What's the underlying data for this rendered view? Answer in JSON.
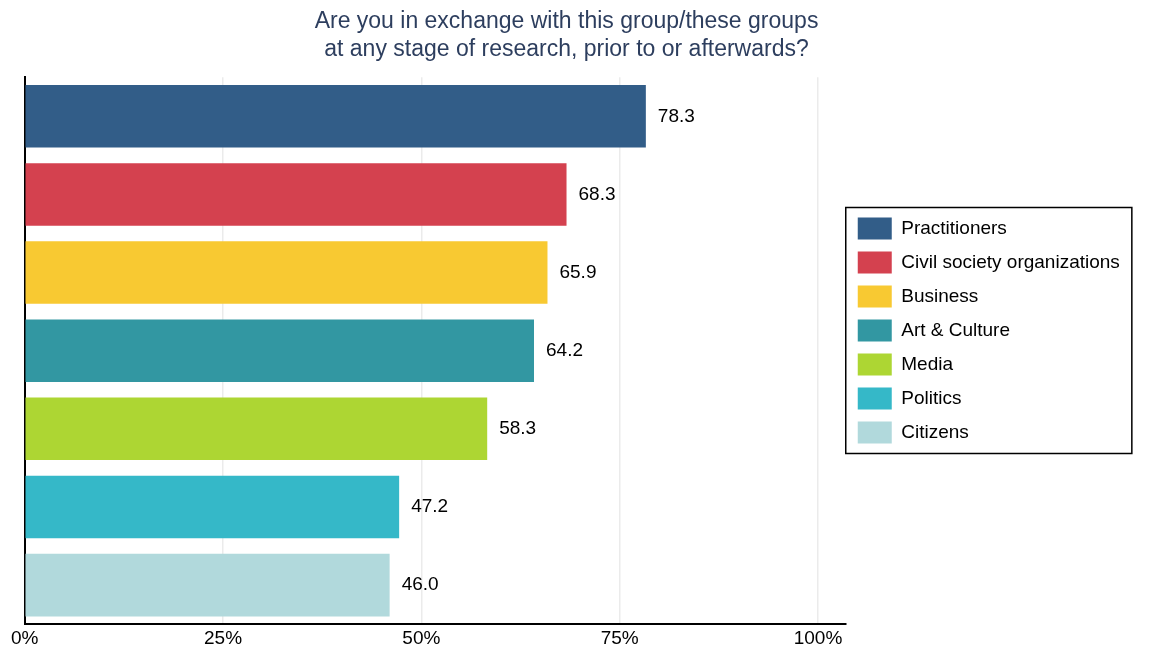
{
  "chart_data": {
    "type": "bar",
    "orientation": "horizontal",
    "title": "Are you in exchange with this group/these groups\nat any stage of research, prior to or afterwards?",
    "categories": [
      null,
      null,
      null,
      null,
      null,
      null,
      null
    ],
    "series": [
      {
        "name": "Practitioners",
        "color": "#325d88",
        "values": [
          78.3,
          null,
          null,
          null,
          null,
          null,
          null
        ],
        "value_labels": [
          "78.3",
          null,
          null,
          null,
          null,
          null,
          null
        ]
      },
      {
        "name": "Civil society organizations",
        "color": "#d4414f",
        "values": [
          null,
          68.3,
          null,
          null,
          null,
          null,
          null
        ],
        "value_labels": [
          null,
          "68.3",
          null,
          null,
          null,
          null,
          null
        ]
      },
      {
        "name": "Business",
        "color": "#f8c932",
        "values": [
          null,
          null,
          65.9,
          null,
          null,
          null,
          null
        ],
        "value_labels": [
          null,
          null,
          "65.9",
          null,
          null,
          null,
          null
        ]
      },
      {
        "name": "Art & Culture",
        "color": "#3297a2",
        "values": [
          null,
          null,
          null,
          64.2,
          null,
          null,
          null
        ],
        "value_labels": [
          null,
          null,
          null,
          "64.2",
          null,
          null,
          null
        ]
      },
      {
        "name": "Media",
        "color": "#add633",
        "values": [
          null,
          null,
          null,
          null,
          58.3,
          null,
          null
        ],
        "value_labels": [
          null,
          null,
          null,
          null,
          "58.3",
          null,
          null
        ]
      },
      {
        "name": "Politics",
        "color": "#35b8c8",
        "values": [
          null,
          null,
          null,
          null,
          null,
          47.2,
          null
        ],
        "value_labels": [
          null,
          null,
          null,
          null,
          null,
          "47.2",
          null
        ]
      },
      {
        "name": "Citizens",
        "color": "#b1d9dc",
        "values": [
          null,
          null,
          null,
          null,
          null,
          null,
          46.0
        ],
        "value_labels": [
          null,
          null,
          null,
          null,
          null,
          null,
          "46.0"
        ]
      }
    ],
    "xlim": [
      0,
      103.5
    ],
    "xticks": [
      {
        "value": 0,
        "label": "0%"
      },
      {
        "value": 25,
        "label": "25%"
      },
      {
        "value": 50,
        "label": "50%"
      },
      {
        "value": 75,
        "label": "75%"
      },
      {
        "value": 100,
        "label": "100%"
      }
    ],
    "grid": "x",
    "legend": "right",
    "tick_labels": "x"
  }
}
